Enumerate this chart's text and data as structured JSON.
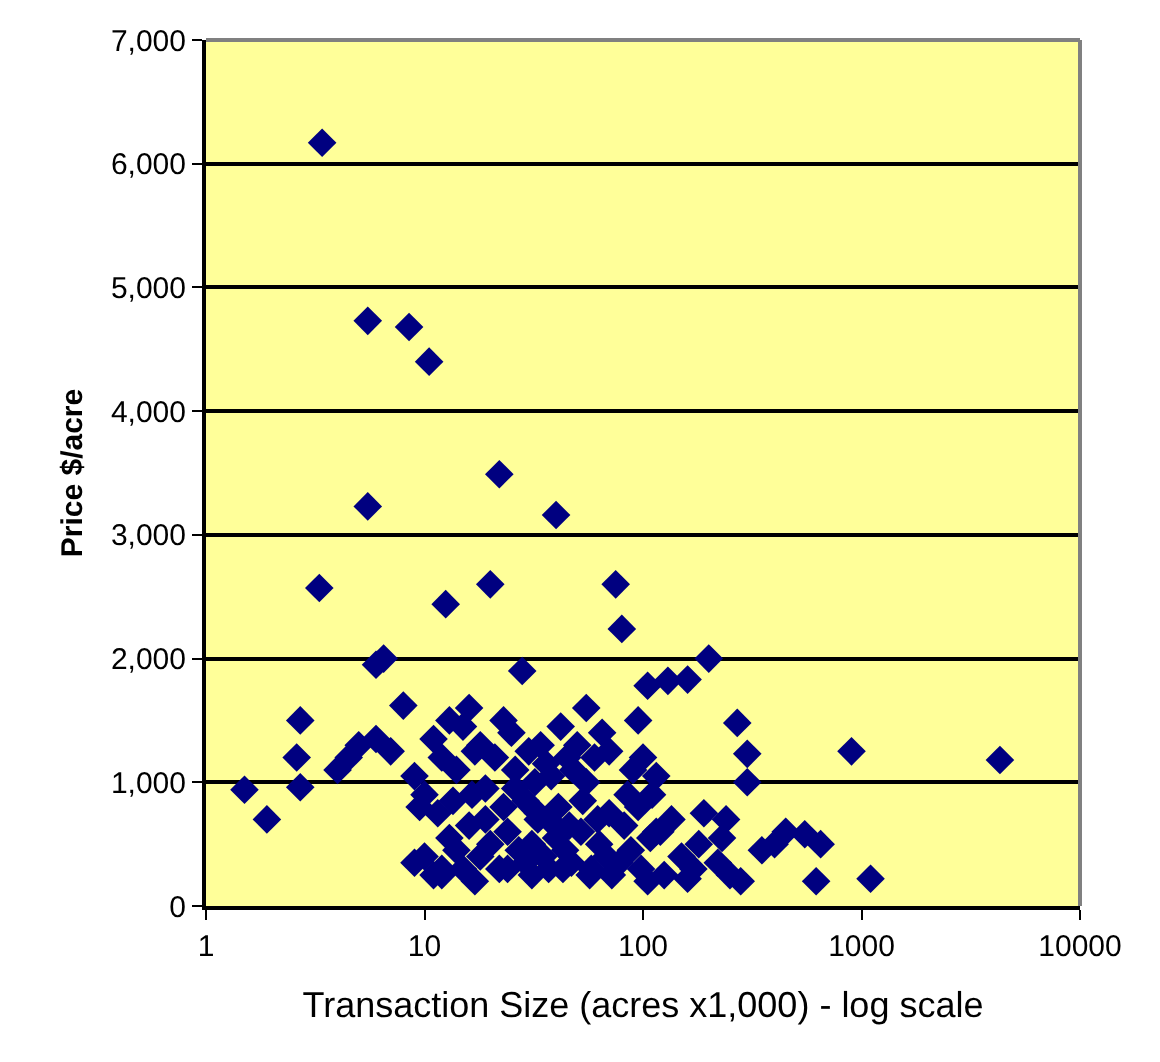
{
  "chart_data": {
    "type": "scatter",
    "xlabel": "Transaction Size (acres x1,000) - log scale",
    "ylabel": "Price $/acre",
    "log": "x",
    "xlim": [
      1,
      10000
    ],
    "xticks": [
      1,
      10,
      100,
      1000,
      10000
    ],
    "ylim": [
      0,
      7000
    ],
    "yticks": [
      {
        "value": 0,
        "label": "0"
      },
      {
        "value": 1000,
        "label": "1,000"
      },
      {
        "value": 2000,
        "label": "2,000"
      },
      {
        "value": 3000,
        "label": "3,000"
      },
      {
        "value": 4000,
        "label": "4,000"
      },
      {
        "value": 5000,
        "label": "5,000"
      },
      {
        "value": 6000,
        "label": "6,000"
      },
      {
        "value": 7000,
        "label": "7,000"
      }
    ],
    "grid": "y",
    "marker": "diamond",
    "series": [
      {
        "color": "#000080",
        "x": [
          3.4,
          5.5,
          8.5,
          10.5,
          5.5,
          22,
          40,
          3.3,
          20,
          12.5,
          75,
          80,
          6.5,
          6,
          8,
          28,
          200,
          130,
          105,
          160,
          270,
          300,
          900,
          4300,
          1.5,
          1.9,
          2.6,
          2.7,
          2.7,
          4,
          4.5,
          5,
          6,
          7,
          13,
          16,
          55,
          95,
          350,
          450,
          550,
          650,
          620,
          1100,
          400,
          300,
          180,
          250,
          160,
          120,
          9,
          10,
          11,
          12,
          14,
          15,
          17,
          18,
          19,
          21,
          23,
          25,
          26,
          30,
          32,
          34,
          36,
          38,
          42,
          45,
          48,
          50,
          55,
          60,
          65,
          70,
          85,
          90,
          100,
          110,
          115,
          9,
          10,
          11,
          12,
          13,
          14,
          15,
          16,
          18,
          20,
          22,
          24,
          27,
          29,
          31,
          33,
          35,
          37,
          40,
          44,
          47,
          52,
          58,
          63,
          68,
          72,
          78,
          88,
          98,
          108,
          125,
          150,
          170,
          220,
          240,
          9.5,
          11.5,
          13.5,
          16.5,
          19,
          23,
          26,
          29,
          33,
          37,
          41,
          46,
          53,
          62,
          70,
          82,
          95,
          115,
          135,
          190,
          230,
          280,
          12,
          17,
          24,
          31,
          43,
          57,
          105
        ],
        "values": [
          6170,
          4730,
          4680,
          4400,
          3230,
          3490,
          3160,
          2570,
          2600,
          2440,
          2600,
          2240,
          2000,
          1950,
          1620,
          1900,
          2000,
          1820,
          1780,
          1830,
          1480,
          1230,
          1250,
          1180,
          940,
          700,
          1200,
          1500,
          960,
          1100,
          1200,
          1300,
          1350,
          1250,
          1500,
          1600,
          1600,
          1500,
          450,
          600,
          580,
          500,
          200,
          220,
          500,
          1000,
          500,
          250,
          220,
          600,
          1050,
          900,
          1350,
          1200,
          1100,
          1450,
          1250,
          1300,
          950,
          1200,
          1500,
          1400,
          1100,
          1250,
          1000,
          1300,
          1150,
          1050,
          1450,
          1200,
          1100,
          1300,
          1000,
          1200,
          1400,
          1250,
          900,
          1100,
          1200,
          900,
          1050,
          350,
          400,
          250,
          300,
          550,
          450,
          300,
          650,
          400,
          500,
          300,
          600,
          450,
          350,
          500,
          700,
          400,
          300,
          550,
          450,
          350,
          600,
          300,
          500,
          400,
          250,
          350,
          450,
          300,
          550,
          250,
          400,
          300,
          350,
          700,
          800,
          750,
          850,
          900,
          700,
          800,
          950,
          850,
          750,
          700,
          800,
          650,
          850,
          700,
          750,
          650,
          800,
          600,
          700,
          750,
          550,
          200,
          250,
          200,
          300,
          250,
          300,
          250,
          200
        ]
      }
    ]
  }
}
